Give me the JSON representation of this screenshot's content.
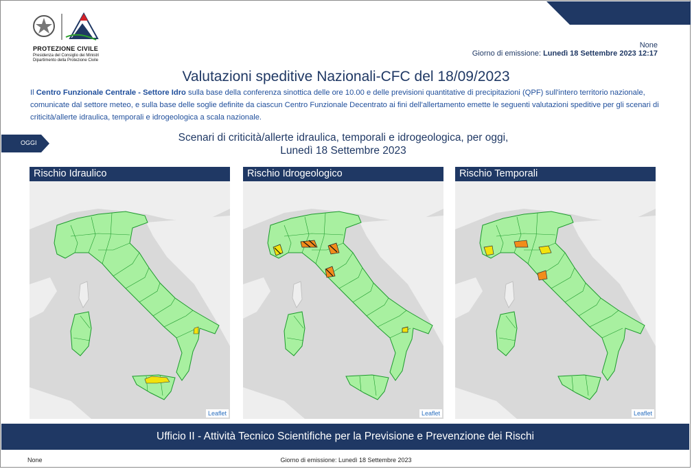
{
  "logo": {
    "title": "PROTEZIONE CIVILE",
    "subtitle_line1": "Presidenza del Consiglio dei Ministri",
    "subtitle_line2": "Dipartimento della Protezione Civile"
  },
  "header": {
    "zone": "None",
    "emission_label": "Giorno di emissione:",
    "emission_value": "Lunedì 18 Settembre 2023 12:17"
  },
  "title": "Valutazioni speditive Nazionali-CFC del 18/09/2023",
  "intro": {
    "prefix": "Il ",
    "bold": "Centro Funzionale Centrale - Settore Idro",
    "text": " sulla base della conferenza sinottica delle ore 10.00 e delle previsioni quantitative di precipitazioni (QPF) sull'intero territorio nazionale, comunicate dal settore meteo, e sulla base delle soglie definite da ciascun Centro Funzionale Decentrato ai fini dell'allertamento emette le seguenti valutazioni speditive per gli scenari di criticità/allerte idraulica, temporali e idrogeologica a scala nazionale."
  },
  "day_tab": "OGGI",
  "scenario": {
    "line1": "Scenari di criticità/allerte idraulica, temporali e idrogeologica, per oggi,",
    "line2": "Lunedì 18 Settembre 2023"
  },
  "maps": [
    {
      "title": "Rischio Idraulico",
      "attribution": "Leaflet"
    },
    {
      "title": "Rischio Idrogeologico",
      "attribution": "Leaflet"
    },
    {
      "title": "Rischio Temporali",
      "attribution": "Leaflet"
    }
  ],
  "colors": {
    "navy": "#1f3864",
    "green_zone": "#a8f0a0",
    "yellow_alert": "#f2e20c",
    "orange_alert": "#f28c1a",
    "sea": "#d9d9d9",
    "land_foreign": "#eeeeee"
  },
  "footer": {
    "office": "Ufficio II - Attività Tecnico Scientifiche per la Previsione e Prevenzione dei Rischi",
    "left": "None",
    "center": "Giorno di emissione: Lunedì 18 Settembre 2023"
  }
}
